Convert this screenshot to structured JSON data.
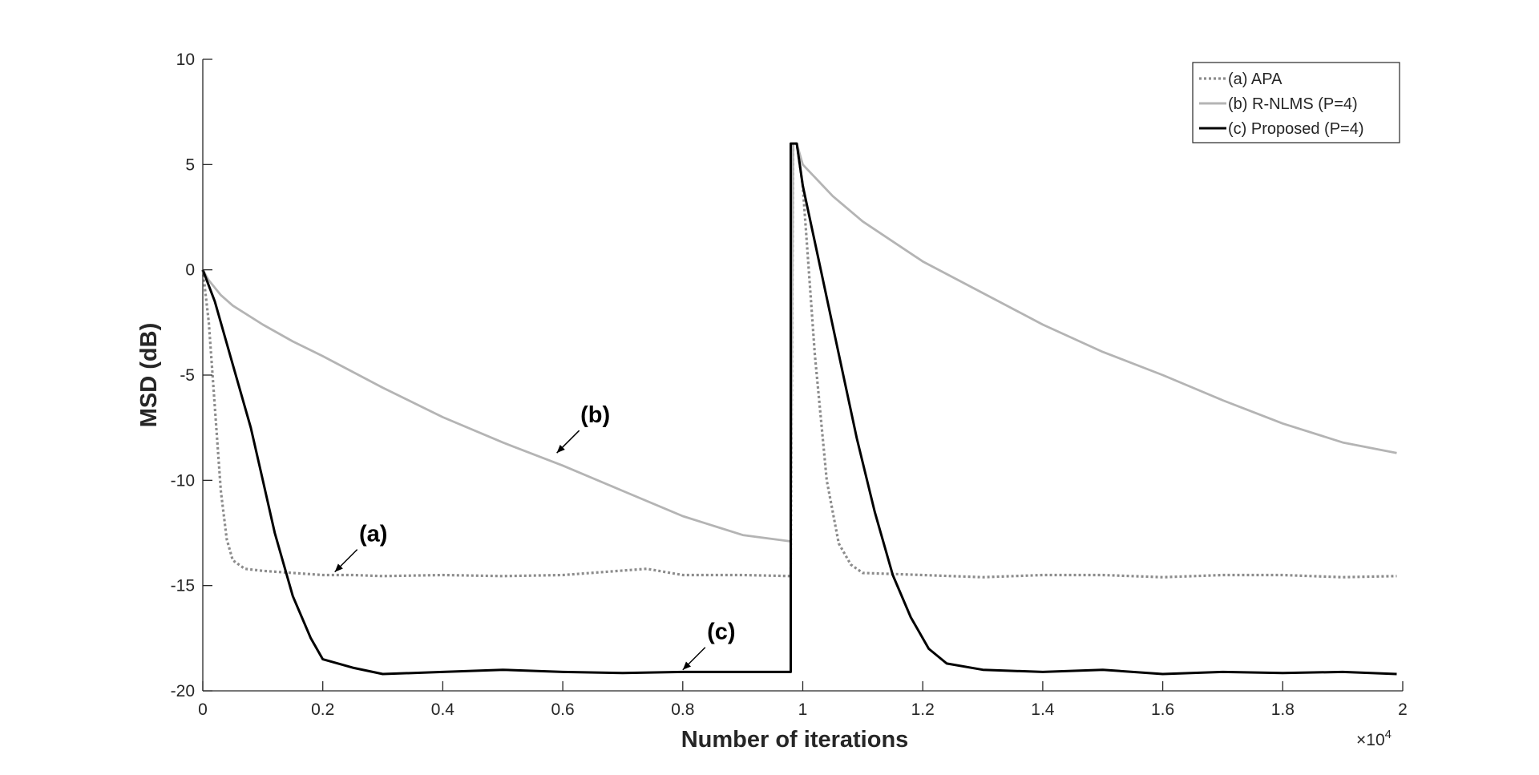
{
  "chart_data": {
    "type": "line",
    "xlabel": "Number of iterations",
    "ylabel": "MSD (dB)",
    "x_multiplier_label": "×10",
    "x_multiplier_exponent": "4",
    "xlim": [
      0,
      2
    ],
    "ylim": [
      -20,
      10
    ],
    "x_ticks": [
      0,
      0.2,
      0.4,
      0.6,
      0.8,
      1,
      1.2,
      1.4,
      1.6,
      1.8,
      2
    ],
    "x_tick_labels": [
      "0",
      "0.2",
      "0.4",
      "0.6",
      "0.8",
      "1",
      "1.2",
      "1.4",
      "1.6",
      "1.8",
      "2"
    ],
    "y_ticks": [
      -20,
      -15,
      -10,
      -5,
      0,
      5,
      10
    ],
    "y_tick_labels": [
      "-20",
      "-15",
      "-10",
      "-5",
      "0",
      "5",
      "10"
    ],
    "grid": false,
    "legend_position": "top-right",
    "series": [
      {
        "name": "(a) APA",
        "color": "#8c8c8c",
        "style": "dotted",
        "points": [
          [
            0,
            0
          ],
          [
            0.01,
            -2.5
          ],
          [
            0.02,
            -6.5
          ],
          [
            0.03,
            -10.5
          ],
          [
            0.04,
            -12.8
          ],
          [
            0.05,
            -13.8
          ],
          [
            0.07,
            -14.2
          ],
          [
            0.1,
            -14.3
          ],
          [
            0.15,
            -14.4
          ],
          [
            0.2,
            -14.5
          ],
          [
            0.25,
            -14.5
          ],
          [
            0.3,
            -14.55
          ],
          [
            0.4,
            -14.5
          ],
          [
            0.5,
            -14.55
          ],
          [
            0.6,
            -14.5
          ],
          [
            0.74,
            -14.2
          ],
          [
            0.8,
            -14.5
          ],
          [
            0.9,
            -14.5
          ],
          [
            0.98,
            -14.55
          ],
          [
            0.984,
            6.0
          ],
          [
            0.99,
            6.0
          ],
          [
            1.0,
            4.0
          ],
          [
            1.02,
            -4.0
          ],
          [
            1.04,
            -10.0
          ],
          [
            1.06,
            -13.0
          ],
          [
            1.08,
            -14.0
          ],
          [
            1.1,
            -14.4
          ],
          [
            1.2,
            -14.5
          ],
          [
            1.3,
            -14.6
          ],
          [
            1.4,
            -14.5
          ],
          [
            1.5,
            -14.5
          ],
          [
            1.6,
            -14.6
          ],
          [
            1.7,
            -14.5
          ],
          [
            1.8,
            -14.5
          ],
          [
            1.9,
            -14.6
          ],
          [
            1.99,
            -14.55
          ]
        ]
      },
      {
        "name": "(b) R-NLMS (P=4)",
        "color": "#b4b4b4",
        "style": "solid",
        "points": [
          [
            0,
            0
          ],
          [
            0.01,
            -0.5
          ],
          [
            0.03,
            -1.2
          ],
          [
            0.05,
            -1.7
          ],
          [
            0.1,
            -2.6
          ],
          [
            0.15,
            -3.4
          ],
          [
            0.2,
            -4.1
          ],
          [
            0.3,
            -5.6
          ],
          [
            0.4,
            -7.0
          ],
          [
            0.5,
            -8.2
          ],
          [
            0.6,
            -9.3
          ],
          [
            0.7,
            -10.5
          ],
          [
            0.8,
            -11.7
          ],
          [
            0.9,
            -12.6
          ],
          [
            0.98,
            -12.9
          ],
          [
            0.984,
            6.0
          ],
          [
            0.99,
            6.0
          ],
          [
            1.0,
            5.0
          ],
          [
            1.05,
            3.5
          ],
          [
            1.1,
            2.3
          ],
          [
            1.2,
            0.4
          ],
          [
            1.3,
            -1.1
          ],
          [
            1.4,
            -2.6
          ],
          [
            1.5,
            -3.9
          ],
          [
            1.6,
            -5.0
          ],
          [
            1.7,
            -6.2
          ],
          [
            1.8,
            -7.3
          ],
          [
            1.9,
            -8.2
          ],
          [
            1.99,
            -8.7
          ]
        ]
      },
      {
        "name": "(c) Proposed (P=4)",
        "color": "#000000",
        "style": "solid",
        "points": [
          [
            0,
            0
          ],
          [
            0.02,
            -1.5
          ],
          [
            0.05,
            -4.5
          ],
          [
            0.08,
            -7.5
          ],
          [
            0.1,
            -10.0
          ],
          [
            0.12,
            -12.5
          ],
          [
            0.15,
            -15.5
          ],
          [
            0.18,
            -17.5
          ],
          [
            0.2,
            -18.5
          ],
          [
            0.25,
            -18.9
          ],
          [
            0.3,
            -19.2
          ],
          [
            0.4,
            -19.1
          ],
          [
            0.5,
            -19.0
          ],
          [
            0.6,
            -19.1
          ],
          [
            0.7,
            -19.15
          ],
          [
            0.8,
            -19.1
          ],
          [
            0.9,
            -19.1
          ],
          [
            0.98,
            -19.1
          ],
          [
            0.98,
            6.0
          ],
          [
            0.99,
            6.0
          ],
          [
            1.0,
            4.0
          ],
          [
            1.03,
            0.0
          ],
          [
            1.06,
            -4.0
          ],
          [
            1.09,
            -8.0
          ],
          [
            1.12,
            -11.5
          ],
          [
            1.15,
            -14.5
          ],
          [
            1.18,
            -16.5
          ],
          [
            1.21,
            -18.0
          ],
          [
            1.24,
            -18.7
          ],
          [
            1.3,
            -19.0
          ],
          [
            1.4,
            -19.1
          ],
          [
            1.5,
            -19.0
          ],
          [
            1.6,
            -19.2
          ],
          [
            1.7,
            -19.1
          ],
          [
            1.8,
            -19.15
          ],
          [
            1.9,
            -19.1
          ],
          [
            1.99,
            -19.2
          ]
        ]
      }
    ],
    "annotations": [
      {
        "label": "(a)",
        "arrow_to": [
          0.22,
          -14.35
        ]
      },
      {
        "label": "(b)",
        "arrow_to": [
          0.59,
          -8.7
        ]
      },
      {
        "label": "(c)",
        "arrow_to": [
          0.8,
          -19.0
        ]
      }
    ]
  }
}
